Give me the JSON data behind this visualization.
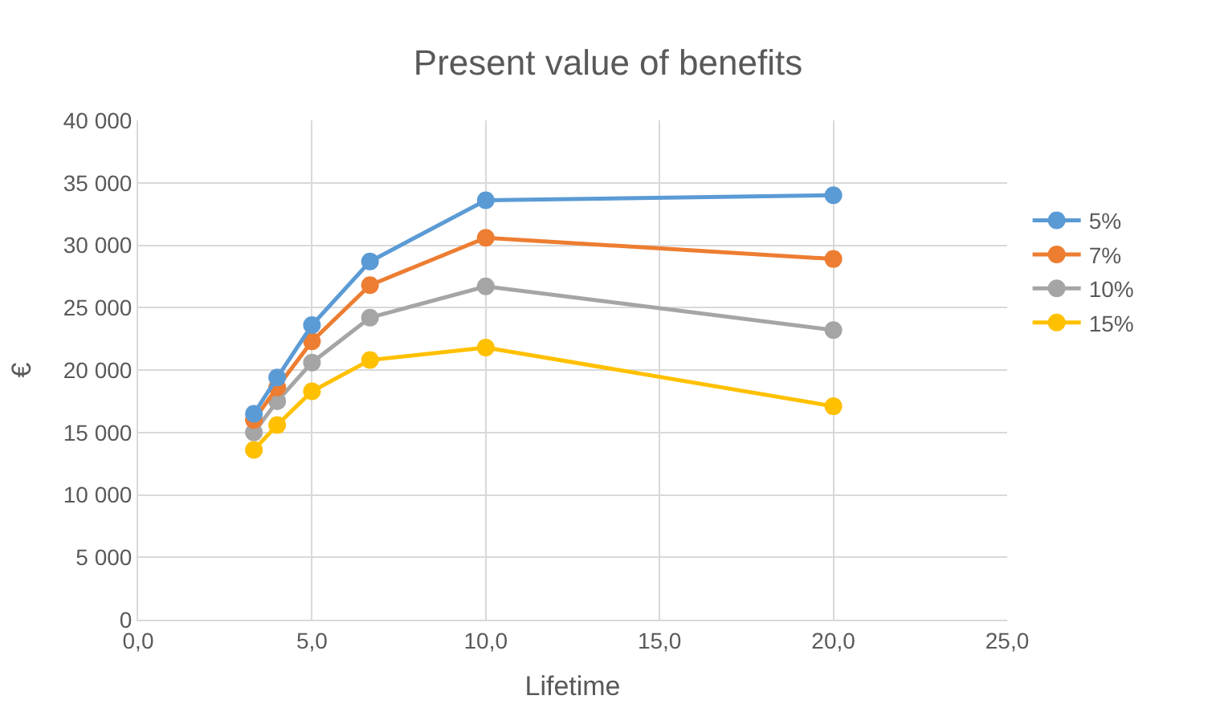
{
  "chart_data": {
    "type": "line",
    "title": "Present value of benefits",
    "xlabel": "Lifetime",
    "ylabel": "€",
    "x": [
      3.33,
      4,
      5,
      6.67,
      10,
      20
    ],
    "series": [
      {
        "name": "5%",
        "color": "#5b9bd5",
        "values": [
          16500,
          19400,
          23600,
          28700,
          33600,
          34000
        ]
      },
      {
        "name": "7%",
        "color": "#ed7d31",
        "values": [
          16000,
          18600,
          22300,
          26800,
          30600,
          28900
        ]
      },
      {
        "name": "10%",
        "color": "#a5a5a5",
        "values": [
          15000,
          17500,
          20600,
          24200,
          26700,
          23200
        ]
      },
      {
        "name": "15%",
        "color": "#ffc000",
        "values": [
          13600,
          15600,
          18300,
          20800,
          21800,
          17100
        ]
      }
    ],
    "xlim": [
      0,
      25
    ],
    "xticks": [
      {
        "value": 0,
        "label": "0,0"
      },
      {
        "value": 5,
        "label": "5,0"
      },
      {
        "value": 10,
        "label": "10,0"
      },
      {
        "value": 15,
        "label": "15,0"
      },
      {
        "value": 20,
        "label": "20,0"
      },
      {
        "value": 25,
        "label": "25,0"
      }
    ],
    "ylim": [
      0,
      40000
    ],
    "yticks": [
      0,
      {
        "value": 5000,
        "label": "5 000"
      },
      {
        "value": 10000,
        "label": "10 000"
      },
      {
        "value": 15000,
        "label": "15 000"
      },
      {
        "value": 20000,
        "label": "20 000"
      },
      {
        "value": 25000,
        "label": "25 000"
      },
      {
        "value": 30000,
        "label": "30 000"
      },
      {
        "value": 35000,
        "label": "35 000"
      },
      {
        "value": 40000,
        "label": "40 000"
      }
    ],
    "grid": true,
    "legend": "right",
    "marker": "circle",
    "line_style": "solid"
  }
}
